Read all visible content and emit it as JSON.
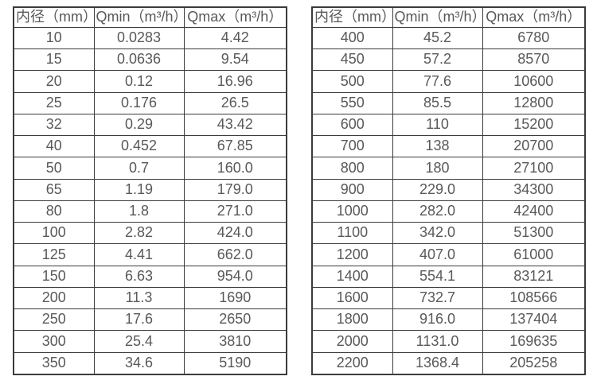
{
  "colors": {
    "background": "#ffffff",
    "border": "#3b3b3b",
    "text": "#595959"
  },
  "tables": [
    {
      "id": "diameter-flow-table-small",
      "headers": [
        "内径（mm）",
        "Qmin（m³/h）",
        "Qmax（m³/h）"
      ],
      "rows": [
        [
          "10",
          "0.0283",
          "4.42"
        ],
        [
          "15",
          "0.0636",
          "9.54"
        ],
        [
          "20",
          "0.12",
          "16.96"
        ],
        [
          "25",
          "0.176",
          "26.5"
        ],
        [
          "32",
          "0.29",
          "43.42"
        ],
        [
          "40",
          "0.452",
          "67.85"
        ],
        [
          "50",
          "0.7",
          "160.0"
        ],
        [
          "65",
          "1.19",
          "179.0"
        ],
        [
          "80",
          "1.8",
          "271.0"
        ],
        [
          "100",
          "2.82",
          "424.0"
        ],
        [
          "125",
          "4.41",
          "662.0"
        ],
        [
          "150",
          "6.63",
          "954.0"
        ],
        [
          "200",
          "11.3",
          "1690"
        ],
        [
          "250",
          "17.6",
          "2650"
        ],
        [
          "300",
          "25.4",
          "3810"
        ],
        [
          "350",
          "34.6",
          "5190"
        ]
      ]
    },
    {
      "id": "diameter-flow-table-large",
      "headers": [
        "内径（mm）",
        "Qmin（m³/h）",
        "Qmax（m³/h）"
      ],
      "rows": [
        [
          "400",
          "45.2",
          "6780"
        ],
        [
          "450",
          "57.2",
          "8570"
        ],
        [
          "500",
          "77.6",
          "10600"
        ],
        [
          "550",
          "85.5",
          "12800"
        ],
        [
          "600",
          "110",
          "15200"
        ],
        [
          "700",
          "138",
          "20700"
        ],
        [
          "800",
          "180",
          "27100"
        ],
        [
          "900",
          "229.0",
          "34300"
        ],
        [
          "1000",
          "282.0",
          "42400"
        ],
        [
          "1100",
          "342.0",
          "51300"
        ],
        [
          "1200",
          "407.0",
          "61000"
        ],
        [
          "1400",
          "554.1",
          "83121"
        ],
        [
          "1600",
          "732.7",
          "108566"
        ],
        [
          "1800",
          "916.0",
          "137404"
        ],
        [
          "2000",
          "1131.0",
          "169635"
        ],
        [
          "2200",
          "1368.4",
          "205258"
        ]
      ]
    }
  ]
}
